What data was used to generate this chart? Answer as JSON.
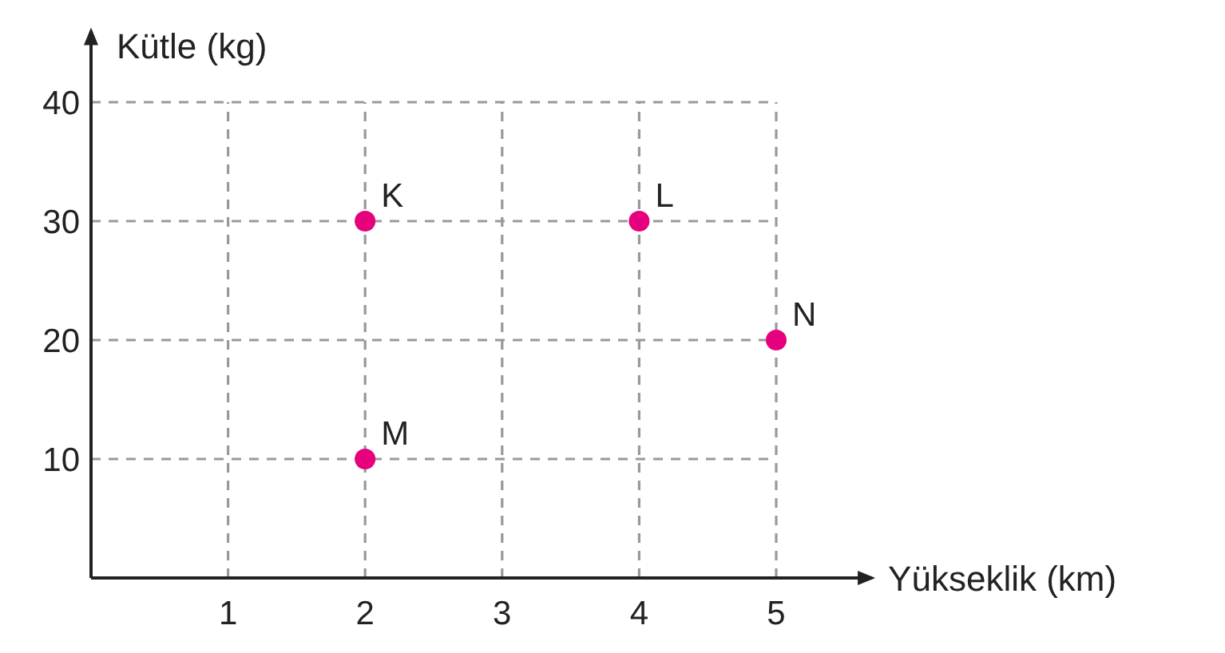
{
  "chart_data": {
    "type": "scatter",
    "xlabel": "Yükseklik (km)",
    "ylabel": "Kütle (kg)",
    "xlim": [
      0,
      5.7
    ],
    "ylim": [
      0,
      46
    ],
    "xticks": [
      1,
      2,
      3,
      4,
      5
    ],
    "yticks": [
      10,
      20,
      30,
      40
    ],
    "grid": true,
    "marker": "circle",
    "series": [
      {
        "color": "#e6007e",
        "x": [
          2,
          4,
          2,
          5
        ],
        "values": [
          30,
          30,
          10,
          20
        ]
      }
    ],
    "annotations": [
      {
        "text": "K",
        "x": 2,
        "y": 30
      },
      {
        "text": "L",
        "x": 4,
        "y": 30
      },
      {
        "text": "M",
        "x": 2,
        "y": 10
      },
      {
        "text": "N",
        "x": 5,
        "y": 20
      }
    ]
  }
}
